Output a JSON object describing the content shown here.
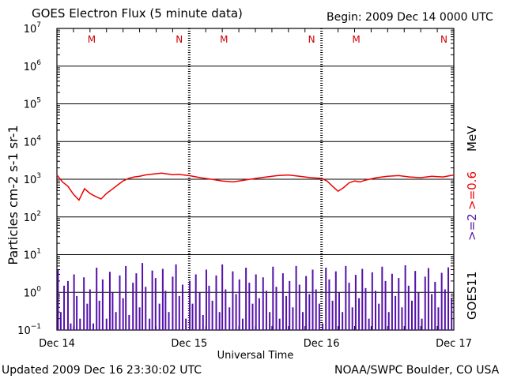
{
  "header": {
    "title": "GOES Electron Flux (5 minute data)",
    "begin": "Begin: 2009 Dec 14 0000 UTC"
  },
  "footer": {
    "updated": "Updated 2009 Dec 16 23:30:02 UTC",
    "credit": "NOAA/SWPC Boulder, CO USA"
  },
  "chart_data": {
    "type": "line",
    "title": "GOES Electron Flux (5 minute data)",
    "xlabel": "Universal Time",
    "ylabel": "Particles cm-2 s-1 sr-1",
    "y_scale": "log",
    "ylim_exp": [
      -1,
      7
    ],
    "xlim_hours": [
      0,
      72
    ],
    "x_ticks": [
      "Dec 14",
      "Dec 15",
      "Dec 16",
      "Dec 17"
    ],
    "y_tick_exponents": [
      7,
      6,
      5,
      4,
      3,
      2,
      1,
      0,
      -1
    ],
    "grid": true,
    "threshold": {
      "value": 1000,
      "style": "dashed"
    },
    "day_markers": [
      "M",
      "N",
      "M",
      "N",
      "M",
      "N"
    ],
    "right_labels": {
      "series2": ">=2",
      "series1": ">=0.6",
      "unit": "MeV",
      "satellite": "GOES11"
    },
    "colors": {
      "series1": "#ee0000",
      "series2": "#5511aa",
      "markers": "#cc0000",
      "frame": "#000000"
    },
    "series": [
      {
        "name": ">=0.6 MeV",
        "x_hours": [
          0,
          1,
          2,
          3,
          4,
          5,
          6,
          7,
          8,
          9,
          10,
          11,
          12,
          13,
          14,
          15,
          16,
          17,
          18,
          19,
          20,
          21,
          22,
          23,
          24,
          26,
          28,
          30,
          32,
          34,
          36,
          38,
          40,
          42,
          44,
          46,
          48,
          49,
          50,
          51,
          52,
          53,
          54,
          55,
          56,
          58,
          60,
          62,
          64,
          66,
          68,
          70,
          72
        ],
        "values": [
          1300,
          850,
          650,
          400,
          280,
          560,
          420,
          350,
          300,
          420,
          540,
          700,
          900,
          1050,
          1150,
          1200,
          1300,
          1350,
          1400,
          1450,
          1380,
          1320,
          1350,
          1300,
          1250,
          1100,
          1000,
          900,
          850,
          950,
          1050,
          1150,
          1250,
          1300,
          1200,
          1100,
          1050,
          900,
          650,
          480,
          600,
          800,
          900,
          850,
          950,
          1100,
          1200,
          1250,
          1150,
          1100,
          1200,
          1150,
          1300
        ]
      },
      {
        "name": ">=2 MeV",
        "x_hours": [
          0.2,
          0.7,
          1.3,
          2.0,
          2.5,
          3.1,
          3.6,
          4.2,
          4.9,
          5.5,
          6.0,
          6.6,
          7.2,
          7.7,
          8.3,
          9.0,
          9.6,
          10.1,
          10.7,
          11.4,
          12.0,
          12.5,
          13.1,
          13.8,
          14.4,
          15.0,
          15.5,
          16.1,
          16.8,
          17.3,
          17.9,
          18.6,
          19.2,
          19.7,
          20.3,
          21.0,
          21.6,
          22.2,
          22.8,
          23.4,
          24.1,
          24.6,
          25.2,
          25.9,
          26.5,
          27.1,
          27.6,
          28.2,
          28.9,
          29.5,
          30.0,
          30.6,
          31.3,
          31.9,
          32.5,
          33.1,
          33.7,
          34.3,
          34.9,
          35.5,
          36.1,
          36.7,
          37.4,
          38.0,
          38.6,
          39.2,
          39.8,
          40.4,
          41.0,
          41.6,
          42.2,
          42.8,
          43.4,
          44.0,
          44.6,
          45.2,
          45.8,
          46.4,
          47.0,
          47.6,
          48.2,
          48.8,
          49.4,
          50.0,
          50.6,
          51.2,
          51.8,
          52.4,
          53.0,
          53.6,
          54.2,
          54.8,
          55.4,
          56.0,
          56.6,
          57.2,
          57.8,
          58.4,
          59.0,
          59.6,
          60.2,
          60.8,
          61.4,
          62.0,
          62.6,
          63.2,
          63.8,
          64.4,
          65.0,
          65.6,
          66.2,
          66.8,
          67.4,
          68.0,
          68.6,
          69.2,
          69.8,
          70.4,
          71.0,
          71.6
        ],
        "values": [
          4.0,
          0.3,
          1.5,
          2.0,
          0.15,
          3.0,
          0.8,
          0.2,
          2.5,
          0.5,
          1.2,
          0.15,
          4.5,
          0.6,
          2.2,
          0.2,
          3.5,
          1.0,
          0.3,
          2.8,
          0.7,
          5.0,
          0.25,
          1.8,
          3.2,
          0.4,
          6.0,
          1.4,
          0.2,
          3.8,
          2.4,
          0.5,
          4.2,
          1.1,
          0.3,
          2.6,
          5.5,
          0.8,
          1.6,
          0.2,
          2.0,
          0.5,
          3.0,
          1.0,
          0.25,
          4.0,
          1.5,
          0.6,
          2.8,
          0.3,
          5.5,
          1.2,
          0.4,
          3.6,
          0.9,
          2.2,
          0.2,
          4.5,
          1.8,
          0.5,
          3.0,
          0.7,
          2.5,
          1.1,
          0.3,
          4.8,
          1.4,
          0.2,
          3.2,
          0.8,
          2.0,
          0.4,
          5.0,
          1.6,
          0.3,
          2.7,
          0.9,
          4.0,
          1.2,
          0.5,
          0.15,
          4.5,
          2.2,
          0.6,
          3.6,
          1.0,
          0.3,
          5.0,
          1.8,
          0.4,
          2.9,
          0.7,
          4.2,
          1.3,
          0.2,
          3.4,
          1.1,
          0.5,
          4.8,
          2.0,
          0.3,
          3.1,
          0.8,
          2.4,
          0.4,
          5.2,
          1.5,
          0.6,
          3.7,
          1.0,
          0.2,
          2.6,
          4.4,
          0.9,
          1.9,
          0.4,
          3.3,
          1.2,
          4.6,
          0.7
        ]
      }
    ]
  }
}
